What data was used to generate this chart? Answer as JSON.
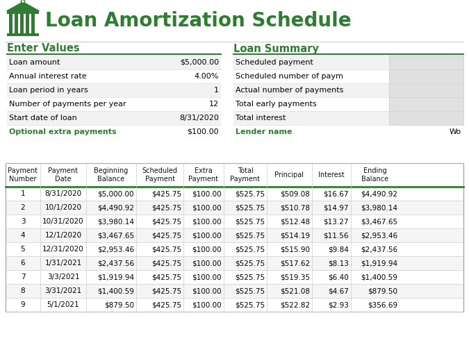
{
  "title": "Loan Amortization Schedule",
  "title_color": "#2E7D32",
  "bg_color": "#FFFFFF",
  "section_left_title": "Enter Values",
  "section_right_title": "Loan Summary",
  "section_title_color": "#2E7D32",
  "left_labels": [
    "Loan amount",
    "Annual interest rate",
    "Loan period in years",
    "Number of payments per year",
    "Start date of loan"
  ],
  "left_values": [
    "$5,000.00",
    "4.00%",
    "1",
    "12",
    "8/31/2020"
  ],
  "right_labels": [
    "Scheduled payment",
    "Scheduled number of paym",
    "Actual number of payments",
    "Total early payments",
    "Total interest"
  ],
  "extra_left_label": "Optional extra payments",
  "extra_left_value": "$100.00",
  "extra_right_label": "Lender name",
  "extra_right_value": "Wo",
  "green_color": "#2E7D32",
  "header_row": [
    "Payment\nNumber",
    "Payment\nDate",
    "Beginning\nBalance",
    "Scheduled\nPayment",
    "Extra\nPayment",
    "Total\nPayment",
    "Principal",
    "Interest",
    "Ending\nBalance"
  ],
  "table_data": [
    [
      "1",
      "8/31/2020",
      "$5,000.00",
      "$425.75",
      "$100.00",
      "$525.75",
      "$509.08",
      "$16.67",
      "$4,490.92"
    ],
    [
      "2",
      "10/1/2020",
      "$4,490.92",
      "$425.75",
      "$100.00",
      "$525.75",
      "$510.78",
      "$14.97",
      "$3,980.14"
    ],
    [
      "3",
      "10/31/2020",
      "$3,980.14",
      "$425.75",
      "$100.00",
      "$525.75",
      "$512.48",
      "$13.27",
      "$3,467.65"
    ],
    [
      "4",
      "12/1/2020",
      "$3,467.65",
      "$425.75",
      "$100.00",
      "$525.75",
      "$514.19",
      "$11.56",
      "$2,953.46"
    ],
    [
      "5",
      "12/31/2020",
      "$2,953.46",
      "$425.75",
      "$100.00",
      "$525.75",
      "$515.90",
      "$9.84",
      "$2,437.56"
    ],
    [
      "6",
      "1/31/2021",
      "$2,437.56",
      "$425.75",
      "$100.00",
      "$525.75",
      "$517.62",
      "$8.13",
      "$1,919.94"
    ],
    [
      "7",
      "3/3/2021",
      "$1,919.94",
      "$425.75",
      "$100.00",
      "$525.75",
      "$519.35",
      "$6.40",
      "$1,400.59"
    ],
    [
      "8",
      "3/31/2021",
      "$1,400.59",
      "$425.75",
      "$100.00",
      "$525.75",
      "$521.08",
      "$4.67",
      "$879.50"
    ],
    [
      "9",
      "5/1/2021",
      "$879.50",
      "$425.75",
      "$100.00",
      "$525.75",
      "$522.82",
      "$2.93",
      "$356.69"
    ]
  ],
  "dark_line_color": "#2E7D32",
  "text_color": "#000000"
}
